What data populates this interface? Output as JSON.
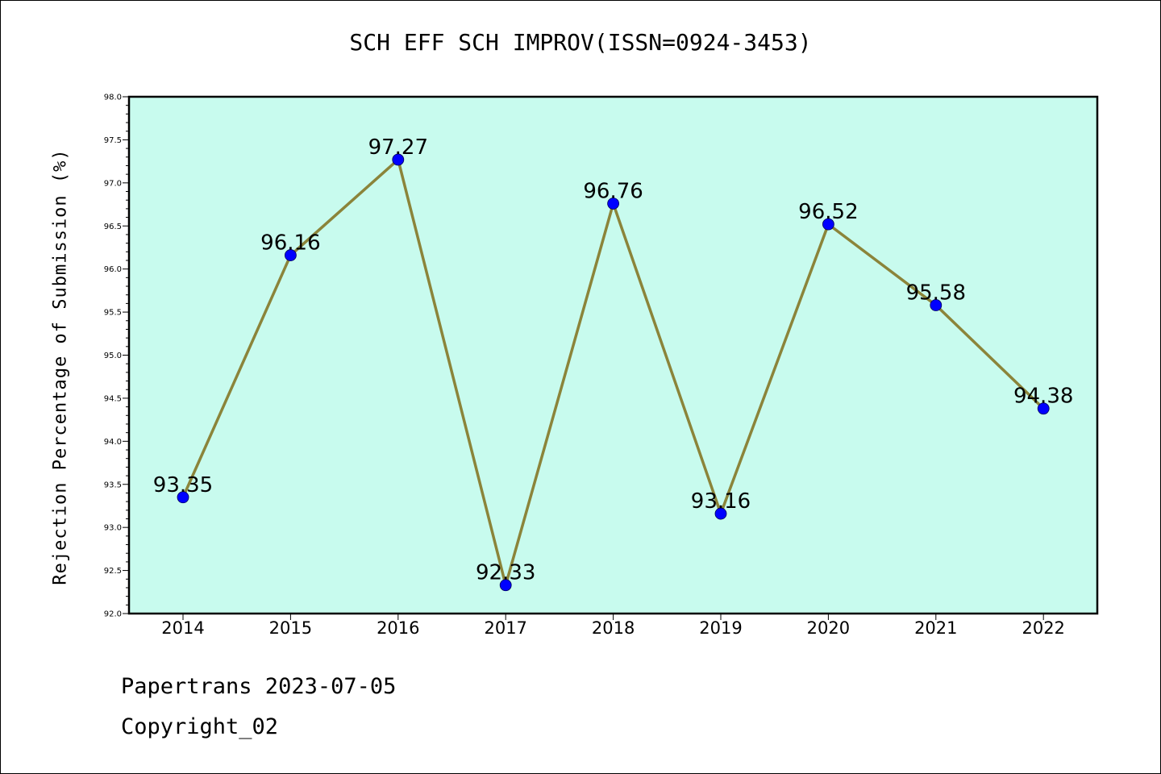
{
  "chart_data": {
    "type": "line",
    "title": "SCH EFF SCH IMPROV(ISSN=0924-3453)",
    "ylabel": "Rejection Percentage of Submission (%)",
    "xlabel": "",
    "x": [
      "2014",
      "2015",
      "2016",
      "2017",
      "2018",
      "2019",
      "2020",
      "2021",
      "2022"
    ],
    "values": [
      93.35,
      96.16,
      97.27,
      92.33,
      96.76,
      93.16,
      96.52,
      95.58,
      94.38
    ],
    "data_labels": [
      "93.35",
      "96.16",
      "97.27",
      "92.33",
      "96.76",
      "93.16",
      "96.52",
      "95.58",
      "94.38"
    ],
    "ylim": [
      92.0,
      98.0
    ],
    "yticks": [
      "92.0",
      "92.5",
      "93.0",
      "93.5",
      "94.0",
      "94.5",
      "95.0",
      "95.5",
      "96.0",
      "96.5",
      "97.0",
      "97.5",
      "98.0"
    ],
    "grid": false,
    "colors": {
      "plot_background": "#c8fbee",
      "line": "#8b843a",
      "marker": "#0000ff"
    }
  },
  "footer": {
    "line1": "Papertrans 2023-07-05",
    "line2": "Copyright_02"
  }
}
